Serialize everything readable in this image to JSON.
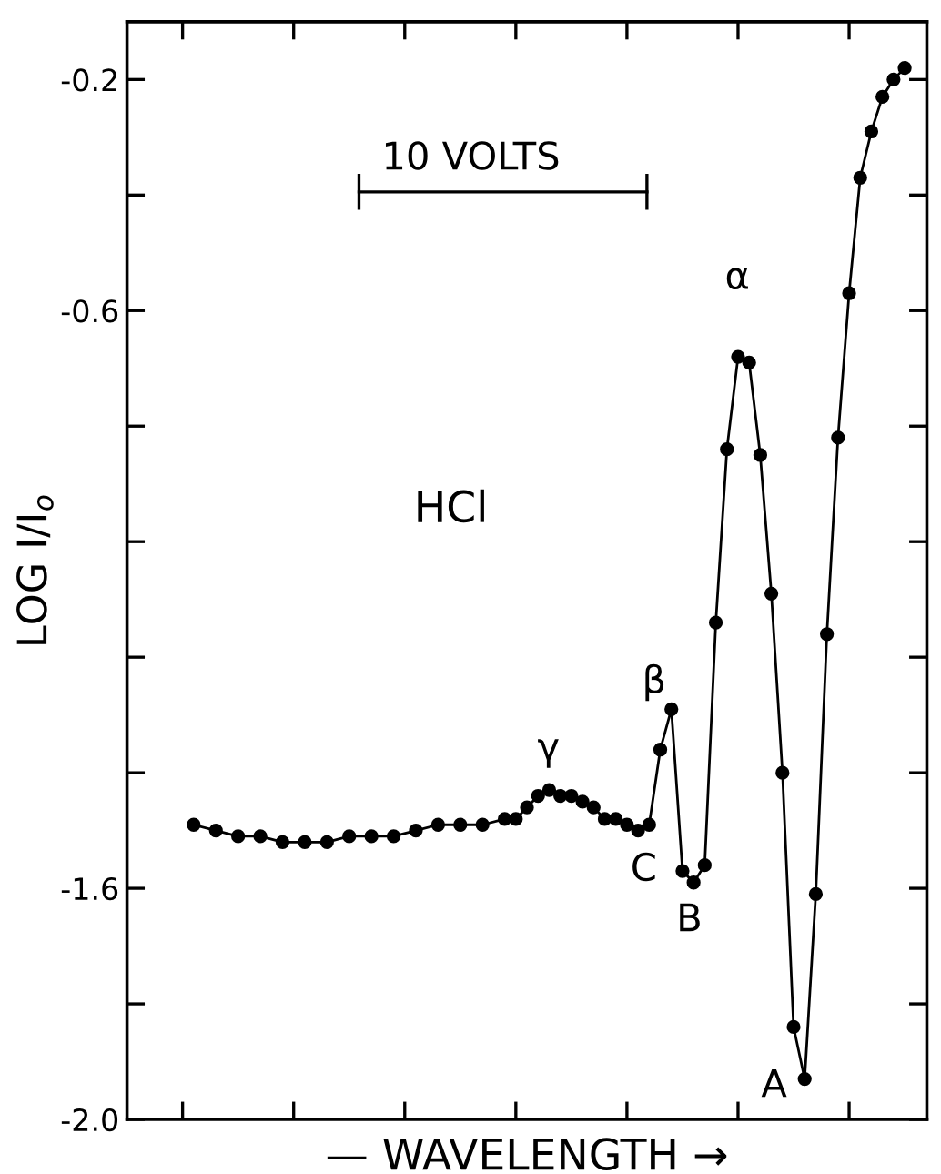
{
  "chart_data": {
    "type": "line",
    "xlabel": "— WAVELENGTH →",
    "ylabel": "LOG I/I$_{o}$",
    "categories": [
      null,
      null,
      null,
      null,
      null,
      null,
      null,
      null,
      null,
      null,
      null,
      null,
      null,
      null,
      null,
      null,
      null,
      null,
      null,
      null,
      null,
      null,
      null,
      null,
      null,
      null,
      null,
      null,
      null,
      null,
      null,
      null,
      null,
      null,
      null,
      null,
      null,
      null,
      null,
      null,
      null,
      null,
      null,
      null,
      null,
      null,
      null,
      null,
      null,
      null,
      null,
      null,
      null,
      null,
      null,
      null,
      null,
      null,
      null,
      null,
      null,
      null,
      null,
      null,
      null
    ],
    "series": [
      {
        "color": "#000000",
        "values": [
          -1.49,
          null,
          -1.5,
          null,
          -1.51,
          null,
          -1.51,
          null,
          -1.52,
          null,
          -1.52,
          null,
          -1.52,
          null,
          -1.51,
          null,
          -1.51,
          null,
          -1.51,
          null,
          -1.5,
          null,
          -1.49,
          null,
          -1.49,
          null,
          -1.49,
          null,
          -1.48,
          -1.48,
          -1.46,
          -1.44,
          -1.43,
          -1.44,
          -1.44,
          -1.45,
          -1.46,
          -1.48,
          -1.48,
          -1.49,
          -1.5,
          -1.49,
          -1.36,
          -1.29,
          -1.57,
          -1.59,
          -1.56,
          -1.14,
          -0.84,
          -0.68,
          -0.69,
          -0.85,
          -1.09,
          -1.4,
          -1.84,
          -1.93,
          -1.61,
          -1.16,
          -0.82,
          -0.57,
          -0.37,
          -0.29,
          -0.23,
          -0.2,
          -0.18
        ]
      }
    ],
    "ylim": [
      -2.0,
      -0.1
    ],
    "yticks": [
      {
        "value": -2.0,
        "label": "-2.0"
      },
      {
        "value": -1.8,
        "label": null
      },
      {
        "value": -1.6,
        "label": "-1.6"
      },
      {
        "value": -1.4,
        "label": null
      },
      {
        "value": -1.2,
        "label": null
      },
      {
        "value": -1.0,
        "label": null
      },
      {
        "value": -0.8,
        "label": null
      },
      {
        "value": -0.6,
        "label": "-0.6"
      },
      {
        "value": -0.4,
        "label": null
      },
      {
        "value": -0.2,
        "label": "-0.2"
      }
    ],
    "marker": "circle",
    "line_style": "solid",
    "annotations": [
      "α",
      "β",
      "γ",
      "C",
      "B",
      "A",
      "HCl",
      "10 VOLTS"
    ]
  }
}
